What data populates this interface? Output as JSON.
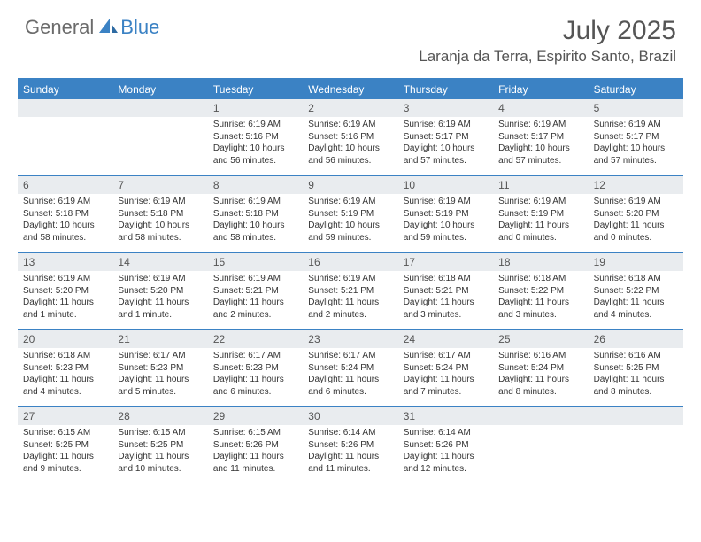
{
  "colors": {
    "accent": "#3b82c4",
    "header_bg": "#3b82c4",
    "daynum_bg": "#e9ecef",
    "text_muted": "#555555",
    "text_body": "#333333",
    "background": "#ffffff",
    "logo_gray": "#6b6b6b"
  },
  "logo": {
    "part1": "General",
    "part2": "Blue"
  },
  "title": "July 2025",
  "location": "Laranja da Terra, Espirito Santo, Brazil",
  "dow": [
    "Sunday",
    "Monday",
    "Tuesday",
    "Wednesday",
    "Thursday",
    "Friday",
    "Saturday"
  ],
  "weeks": [
    [
      null,
      null,
      {
        "n": "1",
        "sunrise": "6:19 AM",
        "sunset": "5:16 PM",
        "daylight": "10 hours and 56 minutes."
      },
      {
        "n": "2",
        "sunrise": "6:19 AM",
        "sunset": "5:16 PM",
        "daylight": "10 hours and 56 minutes."
      },
      {
        "n": "3",
        "sunrise": "6:19 AM",
        "sunset": "5:17 PM",
        "daylight": "10 hours and 57 minutes."
      },
      {
        "n": "4",
        "sunrise": "6:19 AM",
        "sunset": "5:17 PM",
        "daylight": "10 hours and 57 minutes."
      },
      {
        "n": "5",
        "sunrise": "6:19 AM",
        "sunset": "5:17 PM",
        "daylight": "10 hours and 57 minutes."
      }
    ],
    [
      {
        "n": "6",
        "sunrise": "6:19 AM",
        "sunset": "5:18 PM",
        "daylight": "10 hours and 58 minutes."
      },
      {
        "n": "7",
        "sunrise": "6:19 AM",
        "sunset": "5:18 PM",
        "daylight": "10 hours and 58 minutes."
      },
      {
        "n": "8",
        "sunrise": "6:19 AM",
        "sunset": "5:18 PM",
        "daylight": "10 hours and 58 minutes."
      },
      {
        "n": "9",
        "sunrise": "6:19 AM",
        "sunset": "5:19 PM",
        "daylight": "10 hours and 59 minutes."
      },
      {
        "n": "10",
        "sunrise": "6:19 AM",
        "sunset": "5:19 PM",
        "daylight": "10 hours and 59 minutes."
      },
      {
        "n": "11",
        "sunrise": "6:19 AM",
        "sunset": "5:19 PM",
        "daylight": "11 hours and 0 minutes."
      },
      {
        "n": "12",
        "sunrise": "6:19 AM",
        "sunset": "5:20 PM",
        "daylight": "11 hours and 0 minutes."
      }
    ],
    [
      {
        "n": "13",
        "sunrise": "6:19 AM",
        "sunset": "5:20 PM",
        "daylight": "11 hours and 1 minute."
      },
      {
        "n": "14",
        "sunrise": "6:19 AM",
        "sunset": "5:20 PM",
        "daylight": "11 hours and 1 minute."
      },
      {
        "n": "15",
        "sunrise": "6:19 AM",
        "sunset": "5:21 PM",
        "daylight": "11 hours and 2 minutes."
      },
      {
        "n": "16",
        "sunrise": "6:19 AM",
        "sunset": "5:21 PM",
        "daylight": "11 hours and 2 minutes."
      },
      {
        "n": "17",
        "sunrise": "6:18 AM",
        "sunset": "5:21 PM",
        "daylight": "11 hours and 3 minutes."
      },
      {
        "n": "18",
        "sunrise": "6:18 AM",
        "sunset": "5:22 PM",
        "daylight": "11 hours and 3 minutes."
      },
      {
        "n": "19",
        "sunrise": "6:18 AM",
        "sunset": "5:22 PM",
        "daylight": "11 hours and 4 minutes."
      }
    ],
    [
      {
        "n": "20",
        "sunrise": "6:18 AM",
        "sunset": "5:23 PM",
        "daylight": "11 hours and 4 minutes."
      },
      {
        "n": "21",
        "sunrise": "6:17 AM",
        "sunset": "5:23 PM",
        "daylight": "11 hours and 5 minutes."
      },
      {
        "n": "22",
        "sunrise": "6:17 AM",
        "sunset": "5:23 PM",
        "daylight": "11 hours and 6 minutes."
      },
      {
        "n": "23",
        "sunrise": "6:17 AM",
        "sunset": "5:24 PM",
        "daylight": "11 hours and 6 minutes."
      },
      {
        "n": "24",
        "sunrise": "6:17 AM",
        "sunset": "5:24 PM",
        "daylight": "11 hours and 7 minutes."
      },
      {
        "n": "25",
        "sunrise": "6:16 AM",
        "sunset": "5:24 PM",
        "daylight": "11 hours and 8 minutes."
      },
      {
        "n": "26",
        "sunrise": "6:16 AM",
        "sunset": "5:25 PM",
        "daylight": "11 hours and 8 minutes."
      }
    ],
    [
      {
        "n": "27",
        "sunrise": "6:15 AM",
        "sunset": "5:25 PM",
        "daylight": "11 hours and 9 minutes."
      },
      {
        "n": "28",
        "sunrise": "6:15 AM",
        "sunset": "5:25 PM",
        "daylight": "11 hours and 10 minutes."
      },
      {
        "n": "29",
        "sunrise": "6:15 AM",
        "sunset": "5:26 PM",
        "daylight": "11 hours and 11 minutes."
      },
      {
        "n": "30",
        "sunrise": "6:14 AM",
        "sunset": "5:26 PM",
        "daylight": "11 hours and 11 minutes."
      },
      {
        "n": "31",
        "sunrise": "6:14 AM",
        "sunset": "5:26 PM",
        "daylight": "11 hours and 12 minutes."
      },
      null,
      null
    ]
  ],
  "labels": {
    "sunrise_prefix": "Sunrise: ",
    "sunset_prefix": "Sunset: ",
    "daylight_prefix": "Daylight: "
  },
  "typography": {
    "title_fontsize": 30,
    "location_fontsize": 17,
    "dow_fontsize": 12,
    "daynum_fontsize": 12,
    "body_fontsize": 10
  }
}
